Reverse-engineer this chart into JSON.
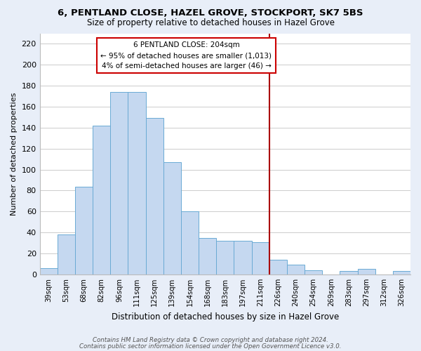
{
  "title": "6, PENTLAND CLOSE, HAZEL GROVE, STOCKPORT, SK7 5BS",
  "subtitle": "Size of property relative to detached houses in Hazel Grove",
  "xlabel": "Distribution of detached houses by size in Hazel Grove",
  "ylabel": "Number of detached properties",
  "bar_labels": [
    "39sqm",
    "53sqm",
    "68sqm",
    "82sqm",
    "96sqm",
    "111sqm",
    "125sqm",
    "139sqm",
    "154sqm",
    "168sqm",
    "183sqm",
    "197sqm",
    "211sqm",
    "226sqm",
    "240sqm",
    "254sqm",
    "269sqm",
    "283sqm",
    "297sqm",
    "312sqm",
    "326sqm"
  ],
  "bar_values": [
    6,
    38,
    84,
    142,
    174,
    174,
    149,
    107,
    60,
    35,
    32,
    32,
    31,
    14,
    9,
    4,
    0,
    3,
    5,
    0,
    3
  ],
  "bar_color": "#c5d8f0",
  "bar_edge_color": "#6aaad4",
  "vline_x_index": 12.5,
  "vline_color": "#aa0000",
  "annotation_line1": "6 PENTLAND CLOSE: 204sqm",
  "annotation_line2": "← 95% of detached houses are smaller (1,013)",
  "annotation_line3": "4% of semi-detached houses are larger (46) →",
  "ylim": [
    0,
    230
  ],
  "yticks": [
    0,
    20,
    40,
    60,
    80,
    100,
    120,
    140,
    160,
    180,
    200,
    220
  ],
  "footer_line1": "Contains HM Land Registry data © Crown copyright and database right 2024.",
  "footer_line2": "Contains public sector information licensed under the Open Government Licence v3.0.",
  "grid_color": "#cccccc",
  "plot_bg_color": "#ffffff",
  "fig_bg_color": "#e8eef8"
}
